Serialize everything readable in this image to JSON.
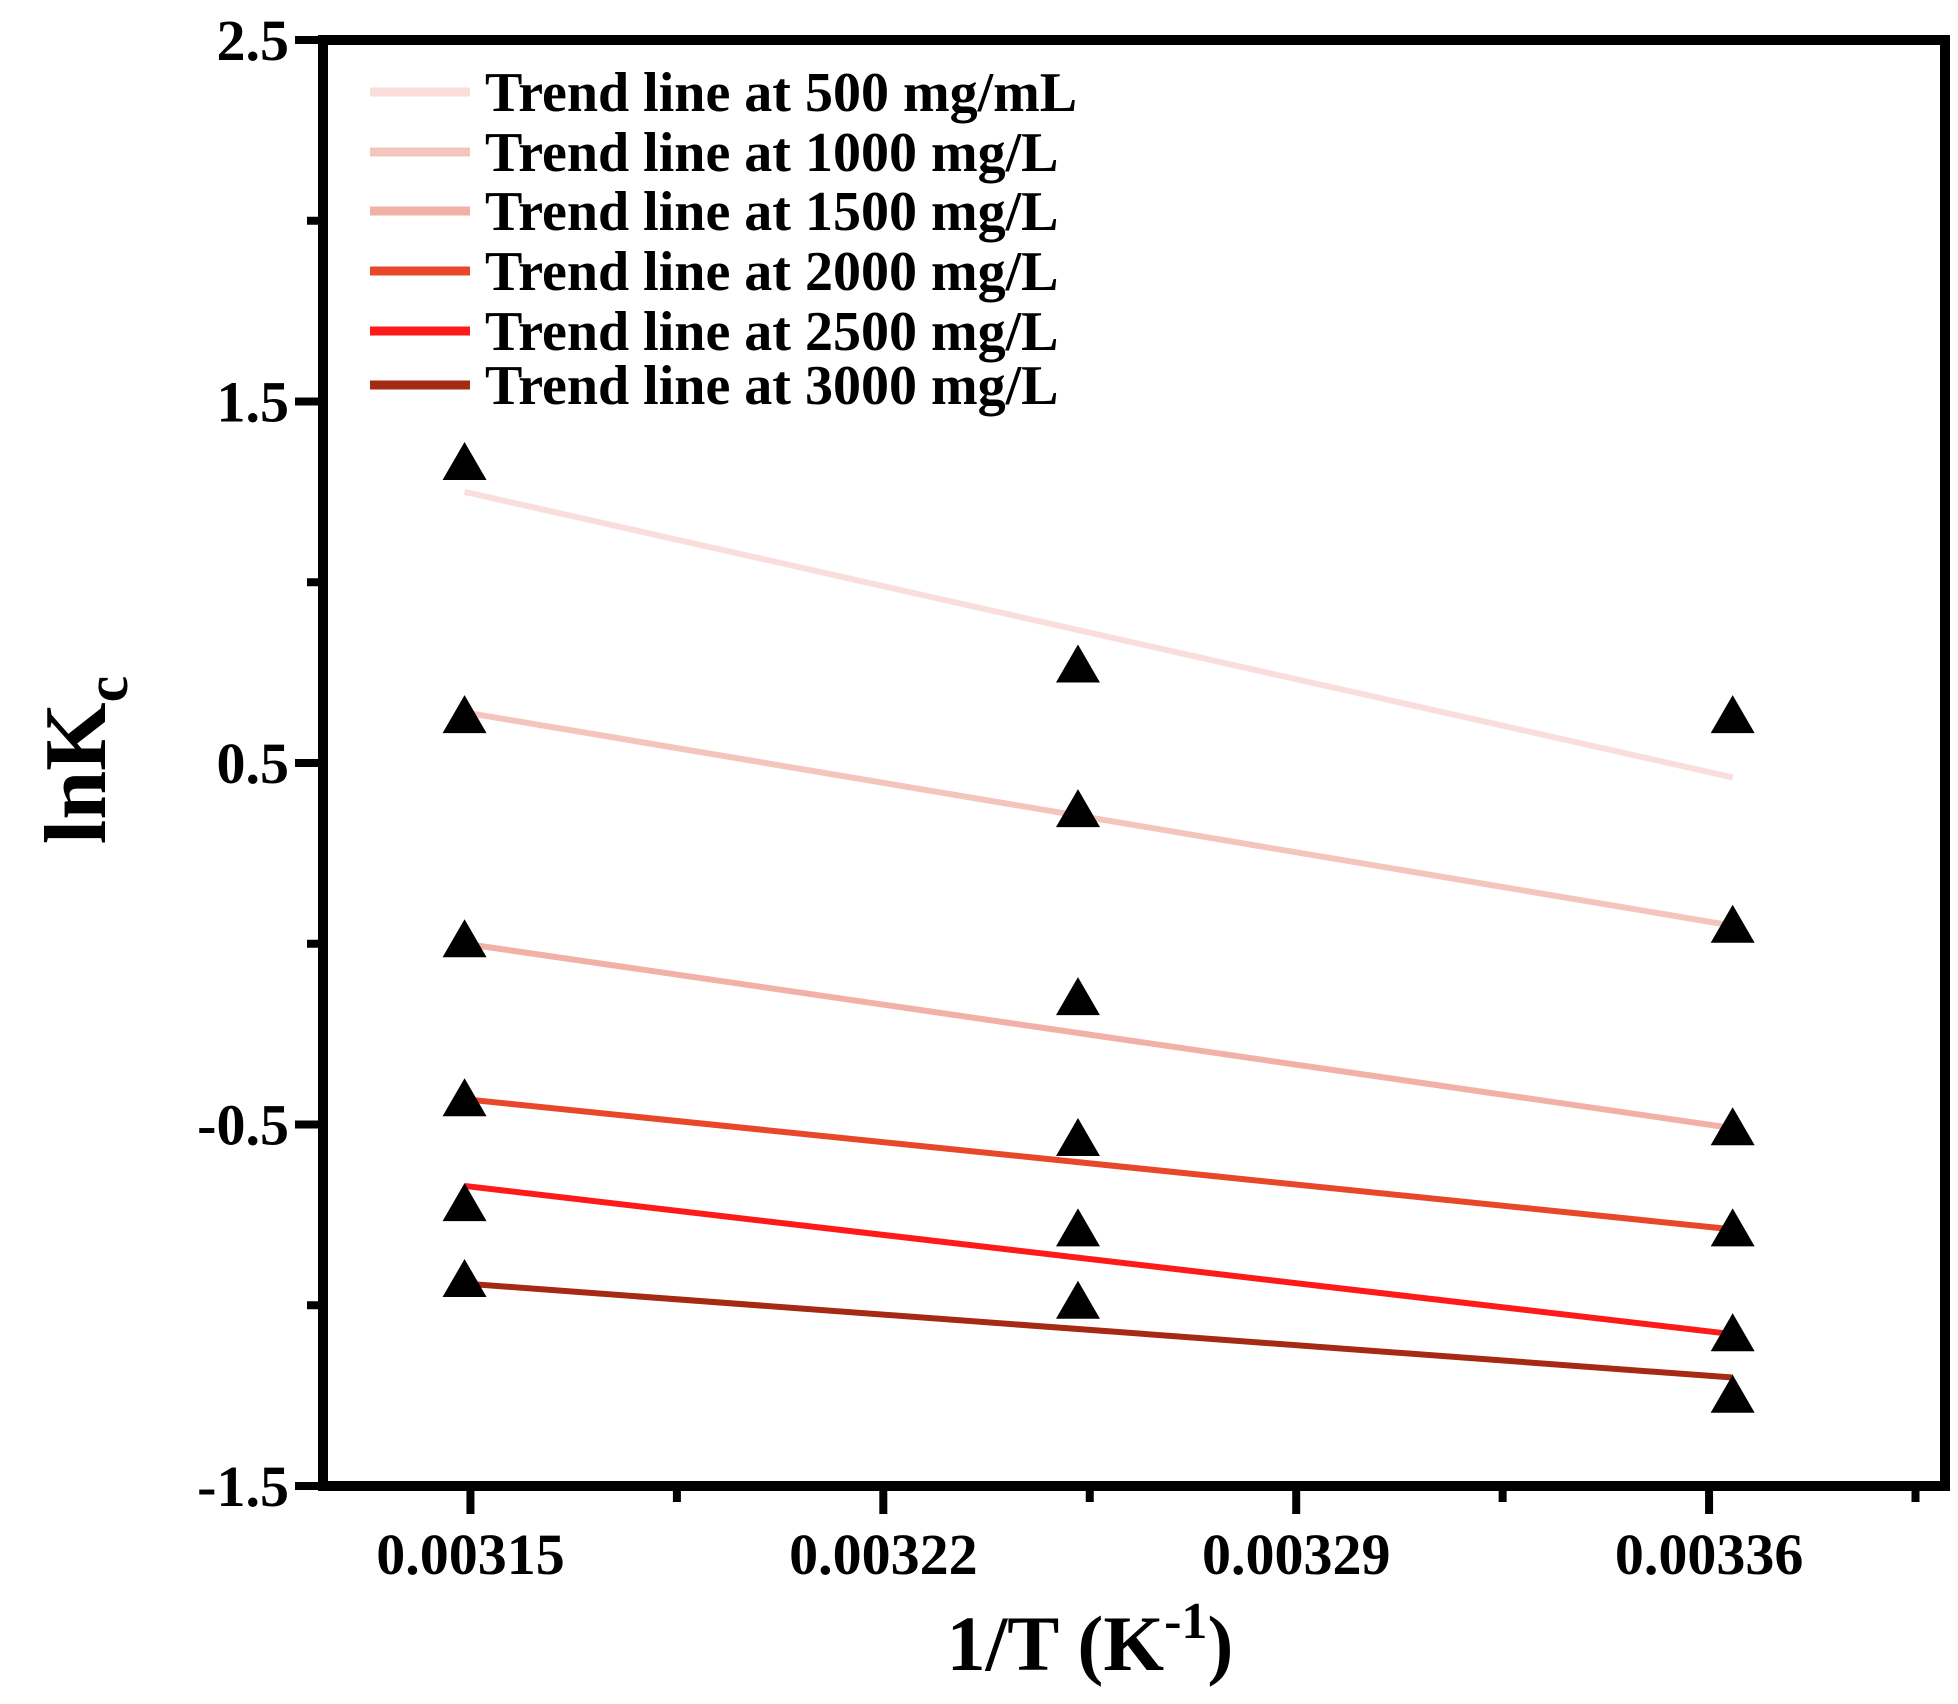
{
  "chart_data": {
    "type": "scatter",
    "title": "",
    "xlabel": "1/T (K",
    "xlabel_sup": "-1",
    "xlabel_close": ")",
    "ylabel": "lnK",
    "ylabel_sub": "c",
    "xlim": [
      0.003125,
      0.0034
    ],
    "ylim": [
      -1.5,
      2.5
    ],
    "x_ticks": [
      0.00315,
      0.00322,
      0.00329,
      0.00336
    ],
    "x_tick_labels": [
      "0.00315",
      "0.00322",
      "0.00329",
      "0.00336"
    ],
    "x_minor_ticks": [
      0.003185,
      0.003255,
      0.003325,
      0.003395
    ],
    "y_ticks": [
      -1.5,
      -0.5,
      0.5,
      1.5,
      2.5
    ],
    "y_tick_labels": [
      "-1.5",
      "-0.5",
      "0.5",
      "1.5",
      "2.5"
    ],
    "y_minor_ticks": [
      -1.0,
      0.0,
      1.0,
      2.0
    ],
    "x": [
      0.003149,
      0.003253,
      0.003364
    ],
    "legend_position": "top-left",
    "series": [
      {
        "name": "Trend line at 500 mg/mL",
        "color": "#f9dedb",
        "points": [
          1.33,
          0.77,
          0.63
        ],
        "line": [
          1.25,
          0.46
        ]
      },
      {
        "name": "Trend line at 1000 mg/L",
        "color": "#f4c5bd",
        "points": [
          0.63,
          0.37,
          0.05
        ],
        "line": [
          0.64,
          0.05
        ]
      },
      {
        "name": "Trend line at 1500 mg/L",
        "color": "#f2b1a6",
        "points": [
          0.01,
          -0.15,
          -0.51
        ],
        "line": [
          0.0,
          -0.51
        ]
      },
      {
        "name": "Trend line at 2000 mg/L",
        "color": "#e8472a",
        "points": [
          -0.43,
          -0.54,
          -0.79
        ],
        "line": [
          -0.43,
          -0.79
        ]
      },
      {
        "name": "Trend line at 2500 mg/L",
        "color": "#ff1a1a",
        "points": [
          -0.72,
          -0.79,
          -1.08
        ],
        "line": [
          -0.67,
          -1.08
        ]
      },
      {
        "name": "Trend line at 3000 mg/L",
        "color": "#a52a14",
        "points": [
          -0.93,
          -0.99,
          -1.25
        ],
        "line": [
          -0.94,
          -1.2
        ]
      }
    ]
  }
}
